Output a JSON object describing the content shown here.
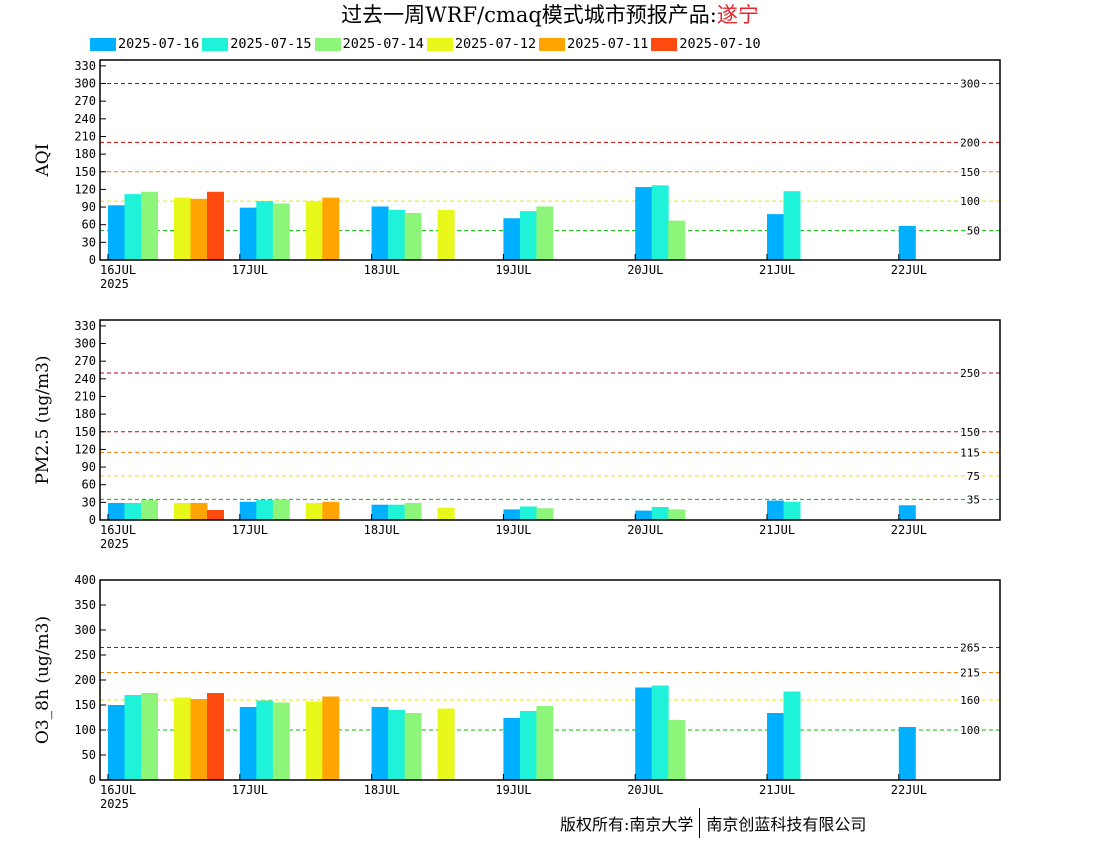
{
  "title": {
    "prefix": "过去一周WRF/cmaq模式城市预报产品:",
    "city": "遂宁"
  },
  "legend": [
    {
      "label": "2025-07-16",
      "color": "#00b0ff"
    },
    {
      "label": "2025-07-15",
      "color": "#1ef2d8"
    },
    {
      "label": "2025-07-14",
      "color": "#8cf57a"
    },
    {
      "label": "2025-07-12",
      "color": "#e8f81a"
    },
    {
      "label": "2025-07-11",
      "color": "#ffa400"
    },
    {
      "label": "2025-07-10",
      "color": "#ff4a10"
    }
  ],
  "copyright": {
    "left": "版权所有:南京大学",
    "right": "南京创蓝科技有限公司"
  },
  "chart_data": [
    {
      "type": "bar",
      "ylabel": "AQI",
      "ylim": [
        0,
        340
      ],
      "yticks": [
        0,
        30,
        60,
        90,
        120,
        150,
        180,
        210,
        240,
        270,
        300,
        330
      ],
      "x_ticks": [
        "16JUL",
        "17JUL",
        "18JUL",
        "19JUL",
        "20JUL",
        "21JUL",
        "22JUL"
      ],
      "x_year": "2025",
      "thresholds": [
        {
          "value": 300,
          "label": "300",
          "color": "#b0003a"
        },
        {
          "value": 200,
          "label": "200",
          "color": "#d00000"
        },
        {
          "value": 150,
          "label": "150",
          "color": "#ff7a00"
        },
        {
          "value": 100,
          "label": "100",
          "color": "#f0e000"
        },
        {
          "value": 50,
          "label": "50",
          "color": "#00c000"
        }
      ],
      "bars": [
        {
          "day": 0,
          "slot": 0,
          "series": "2025-07-16",
          "value": 93
        },
        {
          "day": 0,
          "slot": 1,
          "series": "2025-07-15",
          "value": 112
        },
        {
          "day": 0,
          "slot": 2,
          "series": "2025-07-14",
          "value": 116
        },
        {
          "day": 0,
          "slot": 4,
          "series": "2025-07-12",
          "value": 106
        },
        {
          "day": 0,
          "slot": 5,
          "series": "2025-07-11",
          "value": 104
        },
        {
          "day": 0,
          "slot": 6,
          "series": "2025-07-10",
          "value": 116
        },
        {
          "day": 1,
          "slot": 0,
          "series": "2025-07-16",
          "value": 89
        },
        {
          "day": 1,
          "slot": 1,
          "series": "2025-07-15",
          "value": 100
        },
        {
          "day": 1,
          "slot": 2,
          "series": "2025-07-14",
          "value": 96
        },
        {
          "day": 1,
          "slot": 4,
          "series": "2025-07-12",
          "value": 100
        },
        {
          "day": 1,
          "slot": 5,
          "series": "2025-07-11",
          "value": 106
        },
        {
          "day": 2,
          "slot": 0,
          "series": "2025-07-16",
          "value": 91
        },
        {
          "day": 2,
          "slot": 1,
          "series": "2025-07-15",
          "value": 85
        },
        {
          "day": 2,
          "slot": 2,
          "series": "2025-07-14",
          "value": 80
        },
        {
          "day": 2,
          "slot": 4,
          "series": "2025-07-12",
          "value": 85
        },
        {
          "day": 3,
          "slot": 0,
          "series": "2025-07-16",
          "value": 71
        },
        {
          "day": 3,
          "slot": 1,
          "series": "2025-07-15",
          "value": 83
        },
        {
          "day": 3,
          "slot": 2,
          "series": "2025-07-14",
          "value": 91
        },
        {
          "day": 4,
          "slot": 0,
          "series": "2025-07-16",
          "value": 124
        },
        {
          "day": 4,
          "slot": 1,
          "series": "2025-07-15",
          "value": 127
        },
        {
          "day": 4,
          "slot": 2,
          "series": "2025-07-14",
          "value": 67
        },
        {
          "day": 5,
          "slot": 0,
          "series": "2025-07-16",
          "value": 78
        },
        {
          "day": 5,
          "slot": 1,
          "series": "2025-07-15",
          "value": 117
        },
        {
          "day": 6,
          "slot": 0,
          "series": "2025-07-16",
          "value": 58
        }
      ]
    },
    {
      "type": "bar",
      "ylabel": "PM2.5 (ug/m3)",
      "ylim": [
        0,
        340
      ],
      "yticks": [
        0,
        30,
        60,
        90,
        120,
        150,
        180,
        210,
        240,
        270,
        300,
        330
      ],
      "x_ticks": [
        "16JUL",
        "17JUL",
        "18JUL",
        "19JUL",
        "20JUL",
        "21JUL",
        "22JUL"
      ],
      "x_year": "2025",
      "thresholds": [
        {
          "value": 250,
          "label": "250",
          "color": "#b0003a"
        },
        {
          "value": 150,
          "label": "150",
          "color": "#d00000"
        },
        {
          "value": 115,
          "label": "115",
          "color": "#ff7a00"
        },
        {
          "value": 75,
          "label": "75",
          "color": "#f0e000"
        },
        {
          "value": 35,
          "label": "35",
          "color": "#00c000"
        }
      ],
      "bars": [
        {
          "day": 0,
          "slot": 0,
          "series": "2025-07-16",
          "value": 29
        },
        {
          "day": 0,
          "slot": 1,
          "series": "2025-07-15",
          "value": 29
        },
        {
          "day": 0,
          "slot": 2,
          "series": "2025-07-14",
          "value": 34
        },
        {
          "day": 0,
          "slot": 4,
          "series": "2025-07-12",
          "value": 29
        },
        {
          "day": 0,
          "slot": 5,
          "series": "2025-07-11",
          "value": 29
        },
        {
          "day": 0,
          "slot": 6,
          "series": "2025-07-10",
          "value": 17
        },
        {
          "day": 1,
          "slot": 0,
          "series": "2025-07-16",
          "value": 31
        },
        {
          "day": 1,
          "slot": 1,
          "series": "2025-07-15",
          "value": 34
        },
        {
          "day": 1,
          "slot": 2,
          "series": "2025-07-14",
          "value": 35
        },
        {
          "day": 1,
          "slot": 4,
          "series": "2025-07-12",
          "value": 29
        },
        {
          "day": 1,
          "slot": 5,
          "series": "2025-07-11",
          "value": 31
        },
        {
          "day": 2,
          "slot": 0,
          "series": "2025-07-16",
          "value": 26
        },
        {
          "day": 2,
          "slot": 1,
          "series": "2025-07-15",
          "value": 26
        },
        {
          "day": 2,
          "slot": 2,
          "series": "2025-07-14",
          "value": 29
        },
        {
          "day": 2,
          "slot": 4,
          "series": "2025-07-12",
          "value": 21
        },
        {
          "day": 3,
          "slot": 0,
          "series": "2025-07-16",
          "value": 18
        },
        {
          "day": 3,
          "slot": 1,
          "series": "2025-07-15",
          "value": 23
        },
        {
          "day": 3,
          "slot": 2,
          "series": "2025-07-14",
          "value": 20
        },
        {
          "day": 4,
          "slot": 0,
          "series": "2025-07-16",
          "value": 16
        },
        {
          "day": 4,
          "slot": 1,
          "series": "2025-07-15",
          "value": 22
        },
        {
          "day": 4,
          "slot": 2,
          "series": "2025-07-14",
          "value": 18
        },
        {
          "day": 5,
          "slot": 0,
          "series": "2025-07-16",
          "value": 33
        },
        {
          "day": 5,
          "slot": 1,
          "series": "2025-07-15",
          "value": 31
        },
        {
          "day": 6,
          "slot": 0,
          "series": "2025-07-16",
          "value": 25
        }
      ]
    },
    {
      "type": "bar",
      "ylabel": "O3_8h (ug/m3)",
      "ylim": [
        0,
        400
      ],
      "yticks": [
        0,
        50,
        100,
        150,
        200,
        250,
        300,
        350,
        400
      ],
      "x_ticks": [
        "16JUL",
        "17JUL",
        "18JUL",
        "19JUL",
        "20JUL",
        "21JUL",
        "22JUL"
      ],
      "x_year": "2025",
      "thresholds": [
        {
          "value": 265,
          "label": "265",
          "color": "#d00000"
        },
        {
          "value": 215,
          "label": "215",
          "color": "#ff7a00"
        },
        {
          "value": 160,
          "label": "160",
          "color": "#f0e000"
        },
        {
          "value": 100,
          "label": "100",
          "color": "#00c000"
        }
      ],
      "bars": [
        {
          "day": 0,
          "slot": 0,
          "series": "2025-07-16",
          "value": 150
        },
        {
          "day": 0,
          "slot": 1,
          "series": "2025-07-15",
          "value": 170
        },
        {
          "day": 0,
          "slot": 2,
          "series": "2025-07-14",
          "value": 174
        },
        {
          "day": 0,
          "slot": 4,
          "series": "2025-07-12",
          "value": 165
        },
        {
          "day": 0,
          "slot": 5,
          "series": "2025-07-11",
          "value": 162
        },
        {
          "day": 0,
          "slot": 6,
          "series": "2025-07-10",
          "value": 174
        },
        {
          "day": 1,
          "slot": 0,
          "series": "2025-07-16",
          "value": 146
        },
        {
          "day": 1,
          "slot": 1,
          "series": "2025-07-15",
          "value": 159
        },
        {
          "day": 1,
          "slot": 2,
          "series": "2025-07-14",
          "value": 155
        },
        {
          "day": 1,
          "slot": 4,
          "series": "2025-07-12",
          "value": 157
        },
        {
          "day": 1,
          "slot": 5,
          "series": "2025-07-11",
          "value": 167
        },
        {
          "day": 2,
          "slot": 0,
          "series": "2025-07-16",
          "value": 146
        },
        {
          "day": 2,
          "slot": 1,
          "series": "2025-07-15",
          "value": 140
        },
        {
          "day": 2,
          "slot": 2,
          "series": "2025-07-14",
          "value": 134
        },
        {
          "day": 2,
          "slot": 4,
          "series": "2025-07-12",
          "value": 143
        },
        {
          "day": 3,
          "slot": 0,
          "series": "2025-07-16",
          "value": 124
        },
        {
          "day": 3,
          "slot": 1,
          "series": "2025-07-15",
          "value": 138
        },
        {
          "day": 3,
          "slot": 2,
          "series": "2025-07-14",
          "value": 148
        },
        {
          "day": 4,
          "slot": 0,
          "series": "2025-07-16",
          "value": 185
        },
        {
          "day": 4,
          "slot": 1,
          "series": "2025-07-15",
          "value": 189
        },
        {
          "day": 4,
          "slot": 2,
          "series": "2025-07-14",
          "value": 120
        },
        {
          "day": 5,
          "slot": 0,
          "series": "2025-07-16",
          "value": 134
        },
        {
          "day": 5,
          "slot": 1,
          "series": "2025-07-15",
          "value": 177
        },
        {
          "day": 6,
          "slot": 0,
          "series": "2025-07-16",
          "value": 106
        }
      ]
    }
  ]
}
